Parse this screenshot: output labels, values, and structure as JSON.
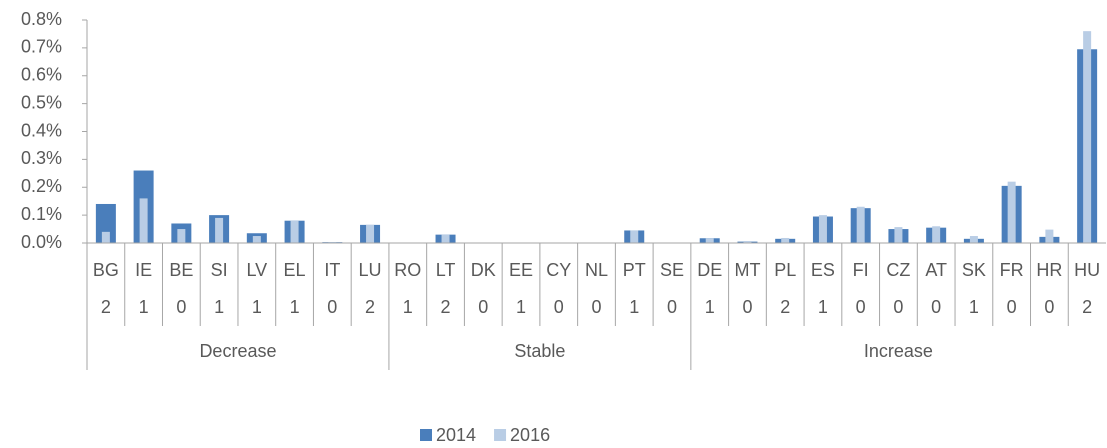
{
  "chart_data": {
    "type": "bar",
    "groups": [
      {
        "name": "Decrease",
        "categories": [
          "BG",
          "IE",
          "BE",
          "SI",
          "LV",
          "EL",
          "IT",
          "LU"
        ],
        "levels": [
          "2",
          "1",
          "0",
          "1",
          "1",
          "1",
          "0",
          "2"
        ]
      },
      {
        "name": "Stable",
        "categories": [
          "RO",
          "LT",
          "DK",
          "EE",
          "CY",
          "NL",
          "PT",
          "SE"
        ],
        "levels": [
          "1",
          "2",
          "0",
          "1",
          "0",
          "0",
          "1",
          "0"
        ]
      },
      {
        "name": "Increase",
        "categories": [
          "DE",
          "MT",
          "PL",
          "ES",
          "FI",
          "CZ",
          "AT",
          "SK",
          "FR",
          "HR",
          "HU"
        ],
        "levels": [
          "1",
          "0",
          "2",
          "1",
          "0",
          "0",
          "0",
          "1",
          "0",
          "0",
          "2"
        ]
      }
    ],
    "series": [
      {
        "name": "2014",
        "color": "#4a7ebb",
        "values": [
          0.14,
          0.26,
          0.07,
          0.1,
          0.035,
          0.08,
          0.003,
          0.065,
          0,
          0.03,
          0,
          0,
          0,
          0,
          0.045,
          0,
          0.017,
          0.005,
          0.015,
          0.095,
          0.125,
          0.05,
          0.055,
          0.015,
          0.205,
          0.022,
          0.695
        ]
      },
      {
        "name": "2016",
        "color": "#b9cde5",
        "values": [
          0.04,
          0.16,
          0.05,
          0.09,
          0.025,
          0.08,
          0.003,
          0.065,
          0,
          0.03,
          0,
          0,
          0,
          0,
          0.045,
          0,
          0.017,
          0.007,
          0.018,
          0.1,
          0.13,
          0.057,
          0.06,
          0.025,
          0.22,
          0.048,
          0.76
        ]
      }
    ],
    "ylim": [
      0,
      0.8
    ],
    "yticks": [
      {
        "value": 0,
        "label": "0.0%"
      },
      {
        "value": 0.1,
        "label": "0.1%"
      },
      {
        "value": 0.2,
        "label": "0.2%"
      },
      {
        "value": 0.3,
        "label": "0.3%"
      },
      {
        "value": 0.4,
        "label": "0.4%"
      },
      {
        "value": 0.5,
        "label": "0.5%"
      },
      {
        "value": 0.6,
        "label": "0.6%"
      },
      {
        "value": 0.7,
        "label": "0.7%"
      },
      {
        "value": 0.8,
        "label": "0.8%"
      }
    ],
    "legend": "bottom"
  }
}
